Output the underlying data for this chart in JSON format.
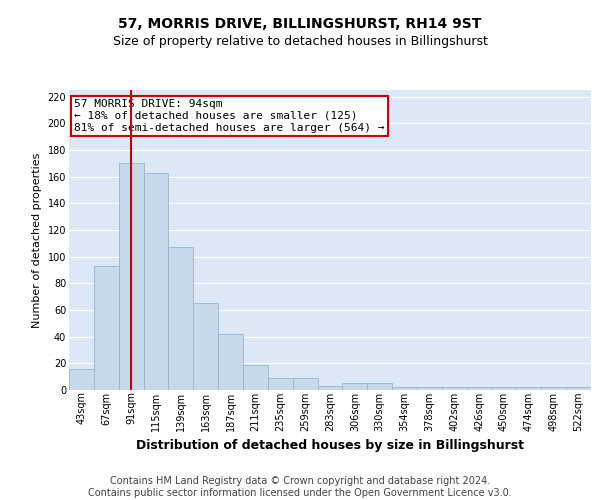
{
  "title": "57, MORRIS DRIVE, BILLINGSHURST, RH14 9ST",
  "subtitle": "Size of property relative to detached houses in Billingshurst",
  "xlabel": "Distribution of detached houses by size in Billingshurst",
  "ylabel": "Number of detached properties",
  "bar_labels": [
    "43sqm",
    "67sqm",
    "91sqm",
    "115sqm",
    "139sqm",
    "163sqm",
    "187sqm",
    "211sqm",
    "235sqm",
    "259sqm",
    "283sqm",
    "306sqm",
    "330sqm",
    "354sqm",
    "378sqm",
    "402sqm",
    "426sqm",
    "450sqm",
    "474sqm",
    "498sqm",
    "522sqm"
  ],
  "bar_heights": [
    16,
    93,
    170,
    163,
    107,
    65,
    42,
    19,
    9,
    9,
    3,
    5,
    5,
    2,
    2,
    2,
    2,
    2,
    2,
    2,
    2
  ],
  "bar_color": "#c8d9eb",
  "bar_edgecolor": "#9ab4cc",
  "bg_color": "#dce8f5",
  "grid_color": "#ffffff",
  "annotation_text": "57 MORRIS DRIVE: 94sqm\n← 18% of detached houses are smaller (125)\n81% of semi-detached houses are larger (564) →",
  "vline_x_index": 2,
  "vline_color": "#cc0000",
  "box_edgecolor": "#cc0000",
  "ylim": [
    0,
    225
  ],
  "yticks": [
    0,
    20,
    40,
    60,
    80,
    100,
    120,
    140,
    160,
    180,
    200,
    220
  ],
  "footer_line1": "Contains HM Land Registry data © Crown copyright and database right 2024.",
  "footer_line2": "Contains public sector information licensed under the Open Government Licence v3.0.",
  "title_fontsize": 10,
  "subtitle_fontsize": 9,
  "annotation_fontsize": 8,
  "footer_fontsize": 7,
  "ylabel_fontsize": 8,
  "xlabel_fontsize": 9,
  "tick_fontsize": 7
}
